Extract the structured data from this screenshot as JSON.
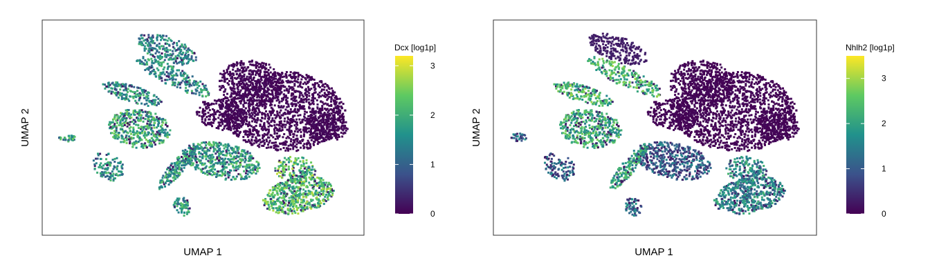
{
  "chart_data": [
    {
      "type": "heatmap",
      "xlabel": "UMAP 1",
      "ylabel": "UMAP 2",
      "legend": {
        "title": "Dcx [log1p]",
        "ticks": [
          "0",
          "1",
          "2",
          "3"
        ],
        "range": [
          0,
          3.2
        ],
        "colormap": [
          "#440154",
          "#3b528b",
          "#21918c",
          "#5ec962",
          "#fde725"
        ]
      },
      "expression_profile": "broad"
    },
    {
      "type": "heatmap",
      "xlabel": "UMAP 1",
      "ylabel": "UMAP 2",
      "legend": {
        "title": "Nhlh2 [log1p]",
        "ticks": [
          "0",
          "1",
          "2",
          "3"
        ],
        "range": [
          0,
          3.5
        ],
        "colormap": [
          "#440154",
          "#3b528b",
          "#21918c",
          "#5ec962",
          "#fde725"
        ]
      },
      "expression_profile": "restricted"
    }
  ]
}
